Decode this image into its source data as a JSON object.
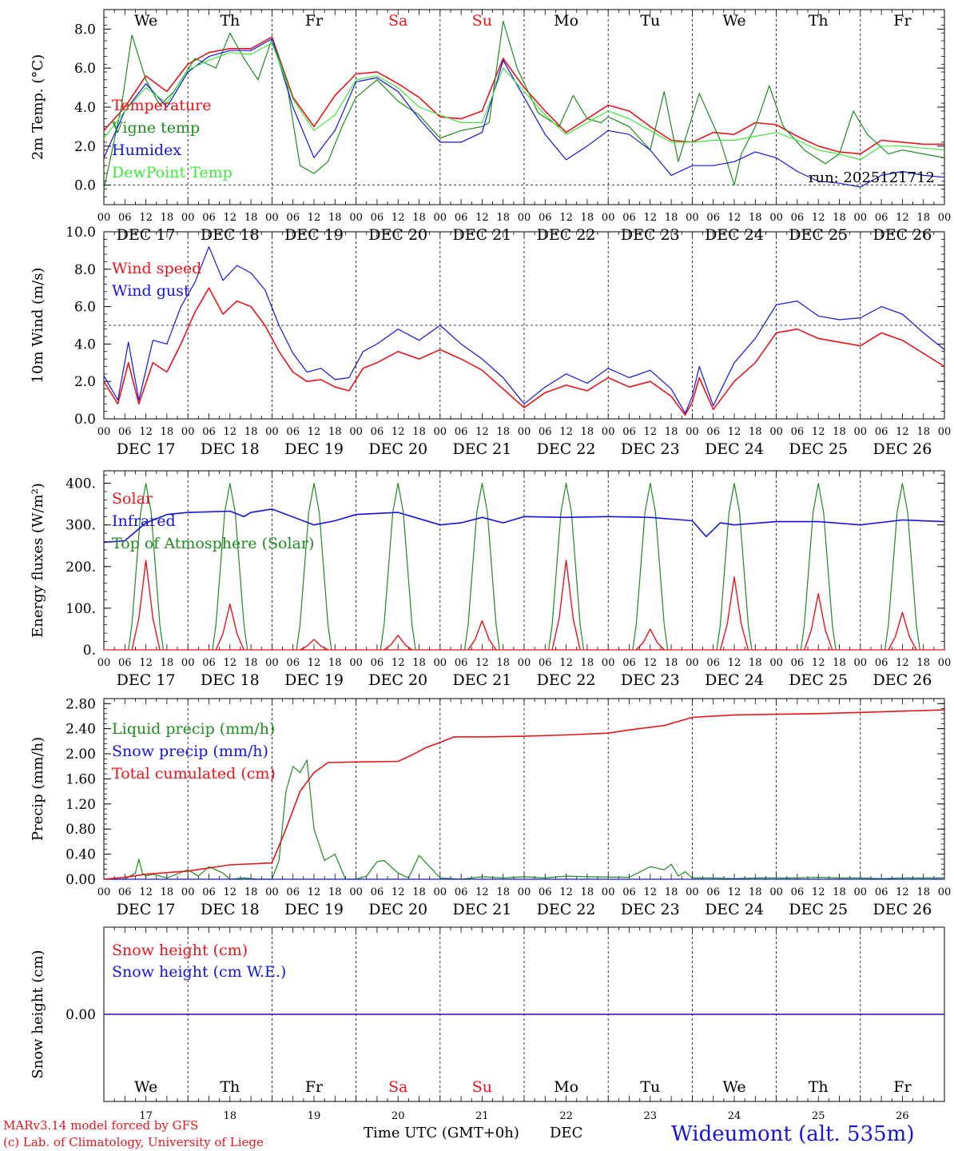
{
  "colors": {
    "red": "#e8141c",
    "green": "#1e8c1e",
    "blue": "#1414e0",
    "lightgreen": "#3ee83e",
    "axis": "#000000"
  },
  "days": {
    "weekdays": [
      "We",
      "Th",
      "Fr",
      "Sa",
      "Su",
      "Mo",
      "Tu",
      "We",
      "Th",
      "Fr"
    ],
    "weekend": [
      false,
      false,
      false,
      true,
      true,
      false,
      false,
      false,
      false,
      false
    ],
    "dates": [
      "DEC 17",
      "DEC 18",
      "DEC 19",
      "DEC 20",
      "DEC 21",
      "DEC 22",
      "DEC 23",
      "DEC 24",
      "DEC 25",
      "DEC 26"
    ],
    "day_numbers": [
      "17",
      "18",
      "19",
      "20",
      "21",
      "22",
      "23",
      "24",
      "25",
      "26"
    ],
    "hour_labels": [
      "00",
      "06",
      "12",
      "18"
    ],
    "final_hour_label": "00"
  },
  "footer": {
    "model": "MARv3.14 model forced by GFS",
    "credit": "(c) Lab. of Climatology, University of Liege",
    "xlabel": "Time UTC (GMT+0h)",
    "month": "DEC",
    "station": "Wideumont (alt. 535m)"
  },
  "chart_data": [
    {
      "type": "line",
      "id": "temp",
      "ylabel": "2m Temp. (°C)",
      "ylim": [
        -1,
        9
      ],
      "yticks": [
        "0.0",
        "2.0",
        "4.0",
        "6.0",
        "8.0"
      ],
      "ytick_values": [
        0,
        2,
        4,
        6,
        8
      ],
      "ref_line": 0,
      "xlim_hours": [
        0,
        240
      ],
      "annotation": "run: 2025121712",
      "series": [
        {
          "name": "Temperature",
          "color": "red",
          "x": [
            0,
            6,
            12,
            18,
            24,
            30,
            36,
            42,
            48,
            54,
            60,
            66,
            72,
            78,
            84,
            90,
            96,
            102,
            108,
            114,
            120,
            126,
            132,
            138,
            144,
            150,
            156,
            162,
            168,
            174,
            180,
            186,
            192,
            198,
            204,
            210,
            216,
            222,
            228,
            234,
            240
          ],
          "values": [
            2.8,
            4.0,
            5.6,
            4.8,
            6.2,
            6.8,
            7.0,
            7.0,
            7.6,
            4.5,
            3.0,
            4.6,
            5.7,
            5.8,
            5.2,
            4.5,
            3.5,
            3.4,
            3.8,
            6.5,
            5.0,
            3.8,
            2.7,
            3.4,
            4.1,
            3.8,
            3.0,
            2.3,
            2.2,
            2.7,
            2.6,
            3.2,
            3.1,
            2.5,
            2.0,
            1.7,
            1.6,
            2.3,
            2.2,
            2.1,
            2.1
          ]
        },
        {
          "name": "Vigne temp",
          "color": "green",
          "x": [
            0,
            5,
            8,
            12,
            16,
            20,
            26,
            32,
            36,
            40,
            44,
            48,
            52,
            56,
            60,
            64,
            68,
            72,
            78,
            84,
            90,
            96,
            102,
            108,
            110,
            114,
            118,
            124,
            130,
            134,
            138,
            142,
            144,
            150,
            156,
            160,
            164,
            170,
            176,
            180,
            182,
            186,
            190,
            194,
            200,
            206,
            210,
            214,
            218,
            224,
            228,
            234,
            240
          ],
          "values": [
            -0.2,
            4.0,
            7.7,
            5.4,
            4.1,
            4.8,
            6.5,
            6.0,
            7.8,
            6.5,
            5.4,
            7.5,
            5.5,
            1.0,
            0.6,
            1.2,
            3.0,
            4.5,
            5.4,
            4.3,
            3.6,
            2.4,
            2.8,
            3.0,
            3.2,
            8.4,
            6.0,
            3.7,
            3.0,
            4.6,
            3.4,
            3.2,
            3.5,
            3.0,
            1.8,
            4.8,
            1.2,
            4.7,
            2.3,
            0.0,
            1.6,
            3.0,
            5.1,
            3.0,
            1.8,
            1.1,
            1.6,
            3.8,
            2.6,
            1.6,
            1.8,
            1.6,
            1.4
          ]
        },
        {
          "name": "Humidex",
          "color": "blue",
          "x": [
            0,
            6,
            12,
            18,
            24,
            30,
            36,
            42,
            48,
            54,
            60,
            66,
            72,
            78,
            84,
            90,
            96,
            102,
            108,
            114,
            120,
            126,
            132,
            138,
            144,
            150,
            156,
            162,
            168,
            174,
            180,
            186,
            192,
            198,
            204,
            210,
            216,
            222,
            228,
            234,
            240
          ],
          "values": [
            1.4,
            3.8,
            5.2,
            4.0,
            5.8,
            6.6,
            6.9,
            6.9,
            7.5,
            4.0,
            1.4,
            2.8,
            5.3,
            5.5,
            4.8,
            3.4,
            2.2,
            2.2,
            2.7,
            6.4,
            4.5,
            2.6,
            1.3,
            2.0,
            2.8,
            2.6,
            1.8,
            0.5,
            1.0,
            1.0,
            1.2,
            1.7,
            1.4,
            0.7,
            0.2,
            0.1,
            -0.1,
            0.5,
            0.7,
            0.5,
            0.4
          ]
        },
        {
          "name": "DewPoint Temp",
          "color": "lightgreen",
          "x": [
            0,
            6,
            12,
            18,
            24,
            30,
            36,
            42,
            48,
            54,
            60,
            66,
            72,
            78,
            84,
            90,
            96,
            102,
            108,
            114,
            120,
            126,
            132,
            138,
            144,
            150,
            156,
            162,
            168,
            174,
            180,
            186,
            192,
            198,
            204,
            210,
            216,
            222,
            228,
            234,
            240
          ],
          "values": [
            2.4,
            3.8,
            5.0,
            4.2,
            5.9,
            6.4,
            6.8,
            6.7,
            7.3,
            4.4,
            2.8,
            3.6,
            5.4,
            5.6,
            5.0,
            4.0,
            3.6,
            3.2,
            3.2,
            6.0,
            4.8,
            3.6,
            2.6,
            3.2,
            3.8,
            3.4,
            2.8,
            2.2,
            2.2,
            2.3,
            2.3,
            2.5,
            2.7,
            2.3,
            1.8,
            1.6,
            1.3,
            2.0,
            2.0,
            1.9,
            1.8
          ]
        }
      ]
    },
    {
      "type": "line",
      "id": "wind",
      "ylabel": "10m Wind (m/s)",
      "ylim": [
        0,
        10
      ],
      "yticks": [
        "0.0",
        "2.0",
        "4.0",
        "6.0",
        "8.0",
        "10.0"
      ],
      "ytick_values": [
        0,
        2,
        4,
        6,
        8,
        10
      ],
      "ref_line": 5,
      "xlim_hours": [
        0,
        240
      ],
      "series": [
        {
          "name": "Wind speed",
          "color": "red",
          "x": [
            0,
            4,
            7,
            10,
            14,
            18,
            22,
            26,
            30,
            34,
            38,
            42,
            46,
            50,
            54,
            58,
            62,
            66,
            70,
            74,
            78,
            84,
            90,
            96,
            102,
            108,
            114,
            120,
            126,
            132,
            138,
            144,
            150,
            156,
            162,
            166,
            168,
            170,
            174,
            180,
            186,
            192,
            198,
            204,
            210,
            216,
            222,
            228,
            234,
            240
          ],
          "values": [
            2.0,
            0.8,
            3.0,
            0.8,
            3.0,
            2.5,
            4.0,
            5.7,
            7.0,
            5.6,
            6.3,
            6.0,
            5.0,
            3.6,
            2.5,
            2.0,
            2.1,
            1.7,
            1.5,
            2.7,
            3.0,
            3.6,
            3.2,
            3.7,
            3.2,
            2.6,
            1.6,
            0.6,
            1.4,
            1.8,
            1.5,
            2.2,
            1.7,
            2.0,
            1.2,
            0.2,
            0.9,
            2.2,
            0.5,
            2.0,
            3.0,
            4.6,
            4.8,
            4.3,
            4.1,
            3.9,
            4.6,
            4.2,
            3.5,
            2.8
          ]
        },
        {
          "name": "Wind gust",
          "color": "blue",
          "x": [
            0,
            4,
            7,
            10,
            14,
            18,
            22,
            26,
            30,
            34,
            38,
            42,
            46,
            50,
            54,
            58,
            62,
            66,
            70,
            74,
            78,
            84,
            90,
            96,
            102,
            108,
            114,
            120,
            126,
            132,
            138,
            144,
            150,
            156,
            162,
            166,
            168,
            170,
            174,
            180,
            186,
            192,
            198,
            204,
            210,
            216,
            222,
            228,
            234,
            240
          ],
          "values": [
            2.3,
            1.0,
            4.1,
            1.0,
            4.2,
            4.0,
            6.0,
            7.3,
            9.2,
            7.4,
            8.2,
            7.8,
            6.9,
            5.0,
            3.5,
            2.5,
            2.7,
            2.1,
            2.2,
            3.6,
            4.0,
            4.8,
            4.2,
            5.0,
            4.0,
            3.2,
            2.2,
            0.8,
            1.7,
            2.4,
            1.9,
            2.7,
            2.2,
            2.6,
            1.6,
            0.3,
            1.2,
            2.8,
            0.7,
            3.0,
            4.3,
            6.1,
            6.3,
            5.5,
            5.3,
            5.4,
            6.0,
            5.6,
            4.6,
            3.7
          ]
        }
      ]
    },
    {
      "type": "line",
      "id": "flux",
      "ylabel": "Energy fluxes (W/m²)",
      "ylim": [
        0,
        430
      ],
      "yticks": [
        "0.",
        "100.",
        "200.",
        "300.",
        "400."
      ],
      "ytick_values": [
        0,
        100,
        200,
        300,
        400
      ],
      "xlim_hours": [
        0,
        240
      ],
      "solar_peaks": [
        215,
        110,
        25,
        35,
        70,
        215,
        50,
        175,
        135,
        90
      ],
      "toa_peak": 400,
      "infrared_x": [
        0,
        6,
        12,
        18,
        24,
        36,
        40,
        42,
        48,
        60,
        66,
        72,
        84,
        96,
        102,
        108,
        114,
        120,
        132,
        144,
        156,
        168,
        172,
        176,
        180,
        192,
        204,
        216,
        228,
        240
      ],
      "infrared_values": [
        258,
        262,
        305,
        325,
        330,
        333,
        320,
        330,
        338,
        300,
        310,
        325,
        330,
        300,
        305,
        318,
        305,
        320,
        318,
        320,
        318,
        310,
        272,
        305,
        300,
        308,
        308,
        300,
        312,
        308
      ],
      "series": [
        {
          "name": "Solar",
          "color": "red"
        },
        {
          "name": "Infrared",
          "color": "blue"
        },
        {
          "name": "Top of Atmosphere (Solar)",
          "color": "green"
        }
      ]
    },
    {
      "type": "line",
      "id": "precip",
      "ylabel": "Precip (mm/h)",
      "ylim": [
        0,
        2.88
      ],
      "yticks": [
        "0.00",
        "0.40",
        "0.80",
        "1.20",
        "1.60",
        "2.00",
        "2.40",
        "2.80"
      ],
      "ytick_values": [
        0,
        0.4,
        0.8,
        1.2,
        1.6,
        2.0,
        2.4,
        2.8
      ],
      "xlim_hours": [
        0,
        240
      ],
      "series": [
        {
          "name": "Liquid precip (mm/h)",
          "color": "green",
          "x": [
            0,
            6,
            9,
            10,
            11,
            12,
            14,
            18,
            24,
            27,
            30,
            34,
            36,
            40,
            44,
            48,
            50,
            52,
            54,
            56,
            58,
            60,
            63,
            66,
            69,
            72,
            75,
            78,
            80,
            84,
            87,
            90,
            96,
            102,
            108,
            114,
            120,
            126,
            132,
            138,
            150,
            156,
            160,
            162,
            164,
            166,
            168,
            174,
            180,
            186,
            192,
            198,
            204,
            210,
            216,
            222,
            228,
            234,
            240
          ],
          "values": [
            0,
            0,
            0.1,
            0.32,
            0.1,
            0.05,
            0.08,
            0.02,
            0.15,
            0.05,
            0.2,
            0.1,
            0.0,
            0.02,
            0.0,
            0.0,
            0.3,
            1.4,
            1.8,
            1.7,
            1.9,
            0.8,
            0.3,
            0.4,
            0.0,
            0.0,
            0.05,
            0.28,
            0.3,
            0.1,
            0.02,
            0.38,
            0.02,
            0.0,
            0.04,
            0.02,
            0.04,
            0.02,
            0.05,
            0.04,
            0.03,
            0.2,
            0.15,
            0.24,
            0.05,
            0.12,
            0.02,
            0.02,
            0.01,
            0.02,
            0.02,
            0.02,
            0.03,
            0.02,
            0.02,
            0.01,
            0.02,
            0.02,
            0.02
          ]
        },
        {
          "name": "Snow precip (mm/h)",
          "color": "blue",
          "x": [
            0,
            240
          ],
          "values": [
            0,
            0
          ]
        },
        {
          "name": "Total cumulated (cm)",
          "color": "red",
          "x": [
            0,
            6,
            12,
            24,
            36,
            48,
            52,
            56,
            60,
            64,
            72,
            84,
            88,
            92,
            96,
            100,
            108,
            120,
            132,
            144,
            150,
            160,
            168,
            180,
            192,
            204,
            216,
            228,
            240
          ],
          "values": [
            0,
            0.03,
            0.08,
            0.13,
            0.23,
            0.26,
            0.8,
            1.4,
            1.7,
            1.86,
            1.87,
            1.88,
            1.98,
            2.1,
            2.18,
            2.27,
            2.27,
            2.28,
            2.3,
            2.33,
            2.38,
            2.45,
            2.58,
            2.62,
            2.63,
            2.64,
            2.66,
            2.68,
            2.7
          ]
        }
      ]
    },
    {
      "type": "line",
      "id": "snow",
      "ylabel": "Snow height (cm)",
      "ylim": [
        -1,
        1
      ],
      "yticks": [
        "0.00"
      ],
      "ytick_values": [
        0
      ],
      "xlim_hours": [
        0,
        240
      ],
      "series": [
        {
          "name": "Snow height (cm)",
          "color": "red",
          "x": [
            0,
            240
          ],
          "values": [
            0,
            0
          ]
        },
        {
          "name": "Snow height (cm W.E.)",
          "color": "blue",
          "x": [
            0,
            240
          ],
          "values": [
            0,
            0
          ]
        }
      ]
    }
  ]
}
